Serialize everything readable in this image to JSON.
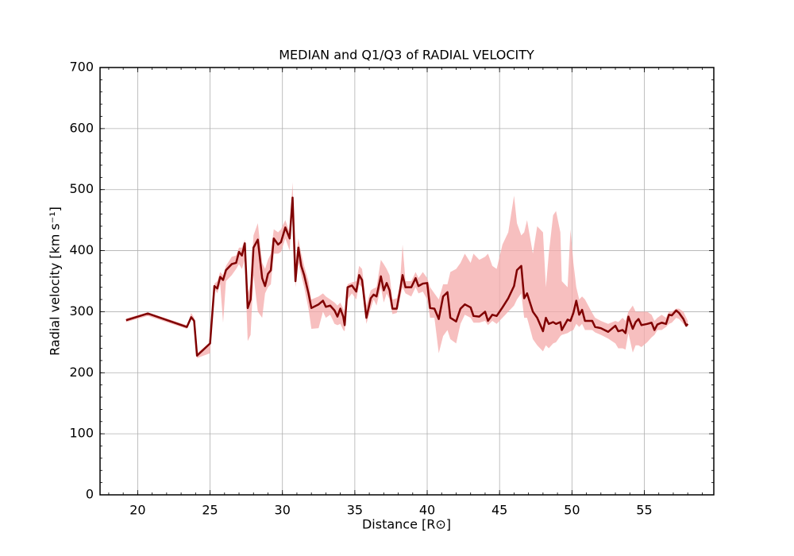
{
  "chart_data": {
    "type": "line-band",
    "title": "MEDIAN and Q1/Q3 of RADIAL VELOCITY",
    "x_label": "Distance [R⊙]",
    "y_label": "Radial velocity [km s⁻¹]",
    "xlim": [
      17.4,
      59.8
    ],
    "ylim": [
      0,
      700
    ],
    "xticks": [
      20,
      25,
      30,
      35,
      40,
      45,
      50,
      55
    ],
    "yticks": [
      0,
      100,
      200,
      300,
      400,
      500,
      600,
      700
    ],
    "grid": true,
    "color": "#800000",
    "band_color": "#f4a9aa",
    "x": [
      19.2,
      20.7,
      23.4,
      23.7,
      23.9,
      24.1,
      25.0,
      25.3,
      25.5,
      25.7,
      25.9,
      26.1,
      26.5,
      26.8,
      27.0,
      27.2,
      27.4,
      27.6,
      27.8,
      28.0,
      28.3,
      28.6,
      28.8,
      29.0,
      29.2,
      29.4,
      29.7,
      29.9,
      30.2,
      30.5,
      30.7,
      30.9,
      31.1,
      31.3,
      31.5,
      31.8,
      32.0,
      32.5,
      32.8,
      33.0,
      33.3,
      33.6,
      33.8,
      34.0,
      34.2,
      34.3,
      34.5,
      34.8,
      35.1,
      35.3,
      35.5,
      35.8,
      36.1,
      36.3,
      36.5,
      36.8,
      37.0,
      37.2,
      37.4,
      37.6,
      37.9,
      38.1,
      38.3,
      38.5,
      38.9,
      39.2,
      39.4,
      39.7,
      40.0,
      40.2,
      40.5,
      40.8,
      41.1,
      41.4,
      41.6,
      42.0,
      42.3,
      42.6,
      43.0,
      43.2,
      43.6,
      44.0,
      44.2,
      44.5,
      44.8,
      45.2,
      45.6,
      46.0,
      46.2,
      46.5,
      46.7,
      46.9,
      47.3,
      47.6,
      48.0,
      48.2,
      48.4,
      48.7,
      48.9,
      49.2,
      49.3,
      49.7,
      49.9,
      50.1,
      50.3,
      50.5,
      50.7,
      50.9,
      51.4,
      51.6,
      52.0,
      52.5,
      53.0,
      53.2,
      53.5,
      53.7,
      53.9,
      54.2,
      54.4,
      54.6,
      54.8,
      55.2,
      55.5,
      55.7,
      55.9,
      56.2,
      56.5,
      56.7,
      56.9,
      57.2,
      57.4,
      57.7,
      57.9,
      58.0
    ],
    "values": [
      286,
      297,
      275,
      291,
      285,
      228,
      248,
      342,
      338,
      357,
      352,
      368,
      378,
      380,
      398,
      392,
      412,
      306,
      320,
      405,
      418,
      355,
      342,
      362,
      368,
      420,
      410,
      414,
      438,
      420,
      487,
      350,
      405,
      375,
      360,
      330,
      306,
      312,
      318,
      308,
      310,
      302,
      292,
      305,
      292,
      278,
      340,
      343,
      333,
      360,
      352,
      290,
      322,
      328,
      325,
      358,
      335,
      347,
      335,
      305,
      305,
      332,
      360,
      340,
      340,
      355,
      342,
      346,
      347,
      306,
      305,
      288,
      325,
      332,
      290,
      284,
      305,
      312,
      307,
      293,
      292,
      300,
      285,
      295,
      293,
      307,
      322,
      342,
      368,
      375,
      322,
      330,
      300,
      290,
      268,
      290,
      280,
      283,
      280,
      283,
      270,
      287,
      285,
      298,
      318,
      295,
      303,
      285,
      285,
      275,
      273,
      267,
      277,
      268,
      270,
      265,
      292,
      272,
      283,
      288,
      278,
      280,
      282,
      270,
      279,
      282,
      280,
      295,
      294,
      302,
      298,
      288,
      277,
      280
    ],
    "q1": [
      283,
      293,
      272,
      288,
      282,
      224,
      232,
      338,
      330,
      345,
      282,
      350,
      360,
      370,
      378,
      370,
      385,
      252,
      262,
      360,
      300,
      290,
      330,
      340,
      345,
      395,
      395,
      398,
      420,
      400,
      470,
      340,
      380,
      360,
      340,
      305,
      272,
      273,
      300,
      290,
      295,
      280,
      278,
      280,
      270,
      268,
      320,
      330,
      320,
      345,
      340,
      280,
      305,
      320,
      310,
      340,
      315,
      330,
      320,
      296,
      298,
      320,
      340,
      330,
      325,
      340,
      330,
      333,
      320,
      290,
      290,
      232,
      260,
      270,
      255,
      248,
      280,
      295,
      290,
      282,
      282,
      285,
      278,
      285,
      280,
      290,
      300,
      310,
      320,
      330,
      290,
      290,
      255,
      245,
      235,
      245,
      240,
      248,
      250,
      260,
      262,
      265,
      268,
      270,
      280,
      275,
      280,
      270,
      270,
      266,
      262,
      256,
      248,
      240,
      240,
      238,
      265,
      233,
      245,
      245,
      242,
      250,
      258,
      262,
      270,
      270,
      275,
      280,
      282,
      290,
      288,
      280,
      275,
      278
    ],
    "q3": [
      289,
      299,
      278,
      298,
      290,
      232,
      250,
      346,
      350,
      365,
      360,
      375,
      390,
      392,
      405,
      405,
      418,
      330,
      345,
      425,
      445,
      380,
      370,
      385,
      395,
      435,
      430,
      435,
      450,
      430,
      512,
      380,
      420,
      395,
      375,
      350,
      320,
      325,
      330,
      325,
      320,
      315,
      310,
      315,
      305,
      300,
      345,
      348,
      350,
      375,
      370,
      310,
      335,
      338,
      340,
      385,
      378,
      370,
      360,
      320,
      322,
      340,
      410,
      350,
      350,
      365,
      355,
      365,
      355,
      340,
      330,
      320,
      345,
      345,
      365,
      370,
      380,
      395,
      380,
      395,
      385,
      390,
      395,
      375,
      370,
      410,
      430,
      490,
      445,
      425,
      430,
      450,
      395,
      440,
      430,
      340,
      395,
      458,
      465,
      430,
      350,
      340,
      435,
      380,
      340,
      320,
      325,
      320,
      298,
      290,
      285,
      280,
      285,
      283,
      290,
      285,
      300,
      310,
      300,
      300,
      300,
      300,
      295,
      285,
      290,
      295,
      290,
      300,
      300,
      305,
      305,
      300,
      290,
      285
    ]
  }
}
